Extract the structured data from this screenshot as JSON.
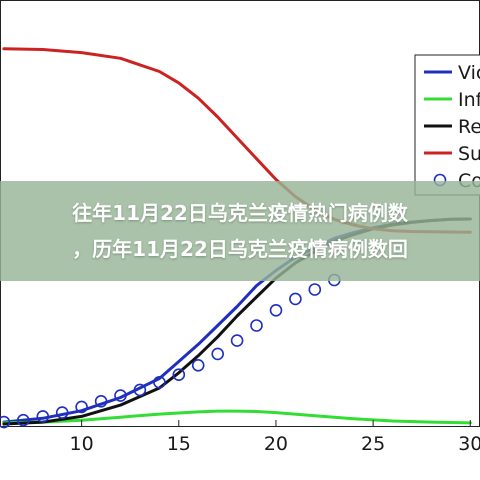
{
  "banner": {
    "line1": "往年11月22日乌克兰疫情热门病例数",
    "line2": "，历年11月22日乌克兰疫情病例数回"
  },
  "colors": {
    "vaccinated": "#1f2fbf",
    "infected": "#33dd33",
    "recovered": "#111111",
    "susceptible": "#cc2222",
    "computed": "#1f2fbf"
  },
  "chart_data": {
    "type": "line",
    "title": "",
    "xlabel": "",
    "ylabel": "",
    "xlim": [
      5.8,
      30.5
    ],
    "ylim": [
      0,
      1
    ],
    "x_ticks": [
      "10",
      "15",
      "20",
      "25",
      "30"
    ],
    "x_tick_values": [
      10,
      15,
      20,
      25,
      30
    ],
    "grid": false,
    "legend_position": "top-right",
    "legend": [
      "Vic",
      "Inf",
      "Re",
      "Su",
      "Co"
    ],
    "series": [
      {
        "name": "Vic",
        "style": "line",
        "x": [
          6,
          8,
          10,
          12,
          14,
          15,
          16,
          17,
          18,
          19,
          20,
          21,
          22,
          23,
          24,
          25,
          26,
          27,
          28,
          29,
          30
        ],
        "y": [
          0.005,
          0.015,
          0.035,
          0.07,
          0.12,
          0.165,
          0.21,
          0.26,
          0.31,
          0.365,
          0.405,
          0.44,
          0.465,
          0.49,
          0.505,
          0.518,
          0.527,
          0.533,
          0.537,
          0.54,
          0.541
        ]
      },
      {
        "name": "Inf",
        "style": "line",
        "x": [
          6,
          8,
          10,
          12,
          14,
          16,
          17,
          18,
          19,
          20,
          22,
          24,
          26,
          28,
          30
        ],
        "y": [
          0.003,
          0.005,
          0.01,
          0.018,
          0.026,
          0.032,
          0.034,
          0.034,
          0.033,
          0.03,
          0.022,
          0.014,
          0.008,
          0.005,
          0.003
        ]
      },
      {
        "name": "Re",
        "style": "line",
        "x": [
          6,
          8,
          10,
          12,
          14,
          15,
          16,
          17,
          18,
          19,
          20,
          21,
          22,
          23,
          24,
          25,
          26,
          27,
          28,
          29,
          30
        ],
        "y": [
          0.0,
          0.005,
          0.02,
          0.05,
          0.095,
          0.135,
          0.18,
          0.23,
          0.285,
          0.335,
          0.385,
          0.425,
          0.455,
          0.482,
          0.5,
          0.515,
          0.525,
          0.532,
          0.537,
          0.54,
          0.541
        ]
      },
      {
        "name": "Su",
        "style": "line",
        "x": [
          6,
          8,
          10,
          12,
          14,
          15,
          16,
          17,
          18,
          19,
          20,
          21,
          22,
          23,
          24,
          25,
          26,
          27,
          28,
          30
        ],
        "y": [
          0.99,
          0.988,
          0.98,
          0.965,
          0.93,
          0.9,
          0.86,
          0.81,
          0.755,
          0.7,
          0.645,
          0.6,
          0.565,
          0.54,
          0.525,
          0.515,
          0.51,
          0.508,
          0.507,
          0.506
        ]
      },
      {
        "name": "Co",
        "style": "markers",
        "x": [
          6,
          7,
          8,
          9,
          10,
          11,
          12,
          13,
          14,
          15,
          16,
          17,
          18,
          19,
          20,
          21,
          22,
          23
        ],
        "y": [
          0.005,
          0.01,
          0.02,
          0.03,
          0.045,
          0.06,
          0.075,
          0.09,
          0.11,
          0.13,
          0.155,
          0.185,
          0.22,
          0.26,
          0.3,
          0.33,
          0.355,
          0.38
        ]
      }
    ]
  }
}
